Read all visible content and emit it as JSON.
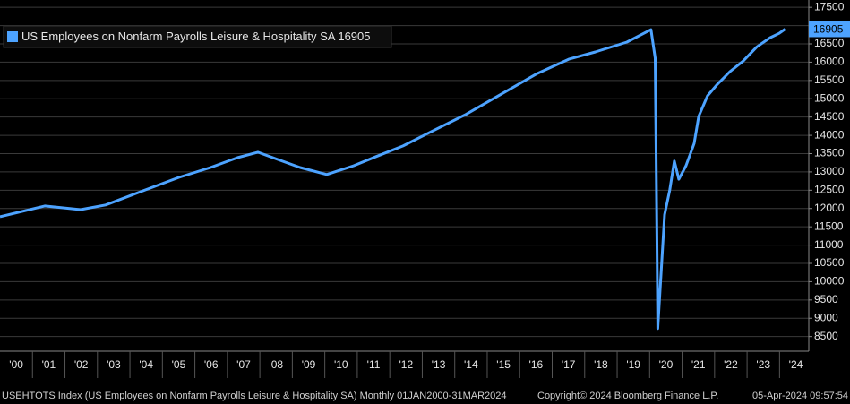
{
  "chart_data": {
    "type": "line",
    "series": [
      {
        "name": "US Employees on Nonfarm Payrolls Leisure & Hospitality SA",
        "color": "#4da3ff",
        "x": [
          2000.0,
          2001.38,
          2002.48,
          2003.25,
          2004.41,
          2005.51,
          2006.48,
          2007.31,
          2007.94,
          2008.55,
          2009.24,
          2010.06,
          2010.89,
          2011.58,
          2012.41,
          2013.23,
          2014.34,
          2015.44,
          2016.54,
          2017.51,
          2018.33,
          2019.3,
          2020.04,
          2020.17,
          2020.25,
          2020.46,
          2020.62,
          2020.76,
          2020.9,
          2021.12,
          2021.37,
          2021.51,
          2021.78,
          2022.06,
          2022.47,
          2022.88,
          2023.3,
          2023.71,
          2023.99,
          2024.17
        ],
        "values": [
          11777,
          12070,
          11970,
          12096,
          12487,
          12850,
          13120,
          13390,
          13540,
          13340,
          13120,
          12930,
          13170,
          13420,
          13710,
          14080,
          14570,
          15130,
          15690,
          16080,
          16280,
          16550,
          16890,
          16110,
          8720,
          11830,
          12510,
          13300,
          12800,
          13170,
          13780,
          14520,
          15080,
          15370,
          15740,
          16030,
          16420,
          16670,
          16790,
          16905
        ]
      }
    ],
    "xlim": [
      2000,
      2024.9
    ],
    "xticks": [
      {
        "value": 2000.5,
        "label": "'00"
      },
      {
        "value": 2001.5,
        "label": "'01"
      },
      {
        "value": 2002.5,
        "label": "'02"
      },
      {
        "value": 2003.5,
        "label": "'03"
      },
      {
        "value": 2004.5,
        "label": "'04"
      },
      {
        "value": 2005.5,
        "label": "'05"
      },
      {
        "value": 2006.5,
        "label": "'06"
      },
      {
        "value": 2007.5,
        "label": "'07"
      },
      {
        "value": 2008.5,
        "label": "'08"
      },
      {
        "value": 2009.5,
        "label": "'09"
      },
      {
        "value": 2010.5,
        "label": "'10"
      },
      {
        "value": 2011.5,
        "label": "'11"
      },
      {
        "value": 2012.5,
        "label": "'12"
      },
      {
        "value": 2013.5,
        "label": "'13"
      },
      {
        "value": 2014.5,
        "label": "'14"
      },
      {
        "value": 2015.5,
        "label": "'15"
      },
      {
        "value": 2016.5,
        "label": "'16"
      },
      {
        "value": 2017.5,
        "label": "'17"
      },
      {
        "value": 2018.5,
        "label": "'18"
      },
      {
        "value": 2019.5,
        "label": "'19"
      },
      {
        "value": 2020.5,
        "label": "'20"
      },
      {
        "value": 2021.5,
        "label": "'21"
      },
      {
        "value": 2022.5,
        "label": "'22"
      },
      {
        "value": 2023.5,
        "label": "'23"
      },
      {
        "value": 2024.5,
        "label": "'24"
      }
    ],
    "ylim": [
      8100,
      17700
    ],
    "yticks": [
      8500,
      9000,
      9500,
      10000,
      10500,
      11000,
      11500,
      12000,
      12500,
      13000,
      13500,
      14000,
      14500,
      15000,
      15500,
      16000,
      16500,
      17000,
      17500
    ],
    "grid": true,
    "footer": {
      "description": "USEHTOTS Index (US Employees on Nonfarm Payrolls Leisure & Hospitality SA)  Monthly 01JAN2000-31MAR2024",
      "copyright": "Copyright© 2024 Bloomberg Finance L.P.",
      "timestamp": "05-Apr-2024 09:57:54"
    }
  }
}
